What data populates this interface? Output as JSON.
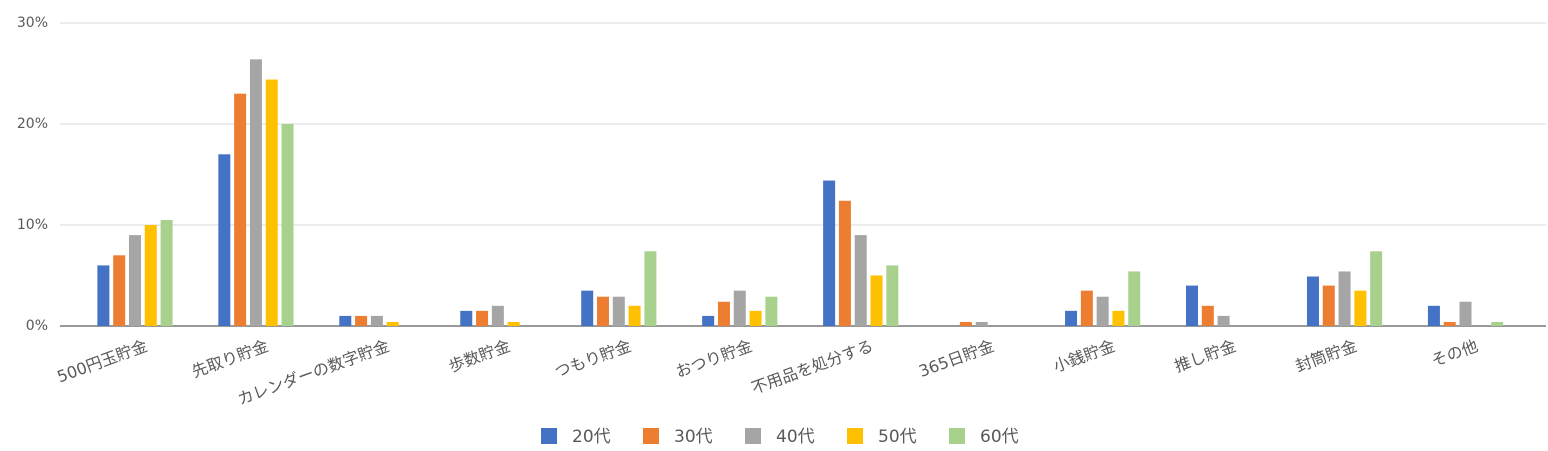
{
  "chart_data": {
    "type": "bar",
    "categories": [
      "500円玉貯金",
      "先取り貯金",
      "カレンダーの数字貯金",
      "歩数貯金",
      "つもり貯金",
      "おつり貯金",
      "不用品を処分する",
      "365日貯金",
      "小銭貯金",
      "推し貯金",
      "封筒貯金",
      "その他"
    ],
    "series": [
      {
        "name": "20代",
        "color": "#4472c4",
        "values": [
          6,
          17,
          1,
          1.5,
          3.5,
          1,
          14.4,
          0,
          1.5,
          4,
          4.9,
          2
        ]
      },
      {
        "name": "30代",
        "color": "#ed7d31",
        "values": [
          7,
          23,
          1,
          1.5,
          2.9,
          2.4,
          12.4,
          0.4,
          3.5,
          2,
          4,
          0.4
        ]
      },
      {
        "name": "40代",
        "color": "#a5a5a5",
        "values": [
          9,
          26.4,
          1,
          2,
          2.9,
          3.5,
          9,
          0.4,
          2.9,
          1,
          5.4,
          2.4
        ]
      },
      {
        "name": "50代",
        "color": "#ffc000",
        "values": [
          10,
          24.4,
          0.4,
          0.4,
          2,
          1.5,
          5,
          0,
          1.5,
          0,
          3.5,
          0
        ]
      },
      {
        "name": "60代",
        "color": "#a9d18e",
        "values": [
          10.5,
          20,
          0,
          0,
          7.4,
          2.9,
          6,
          0,
          5.4,
          0,
          7.4,
          0.4
        ]
      }
    ],
    "ylim": [
      0,
      30
    ],
    "yticks": [
      {
        "value": 0,
        "label": "0%"
      },
      {
        "value": 10,
        "label": "10%"
      },
      {
        "value": 20,
        "label": "20%"
      },
      {
        "value": 30,
        "label": "30%"
      }
    ],
    "grid": true,
    "legend": "bottom"
  }
}
